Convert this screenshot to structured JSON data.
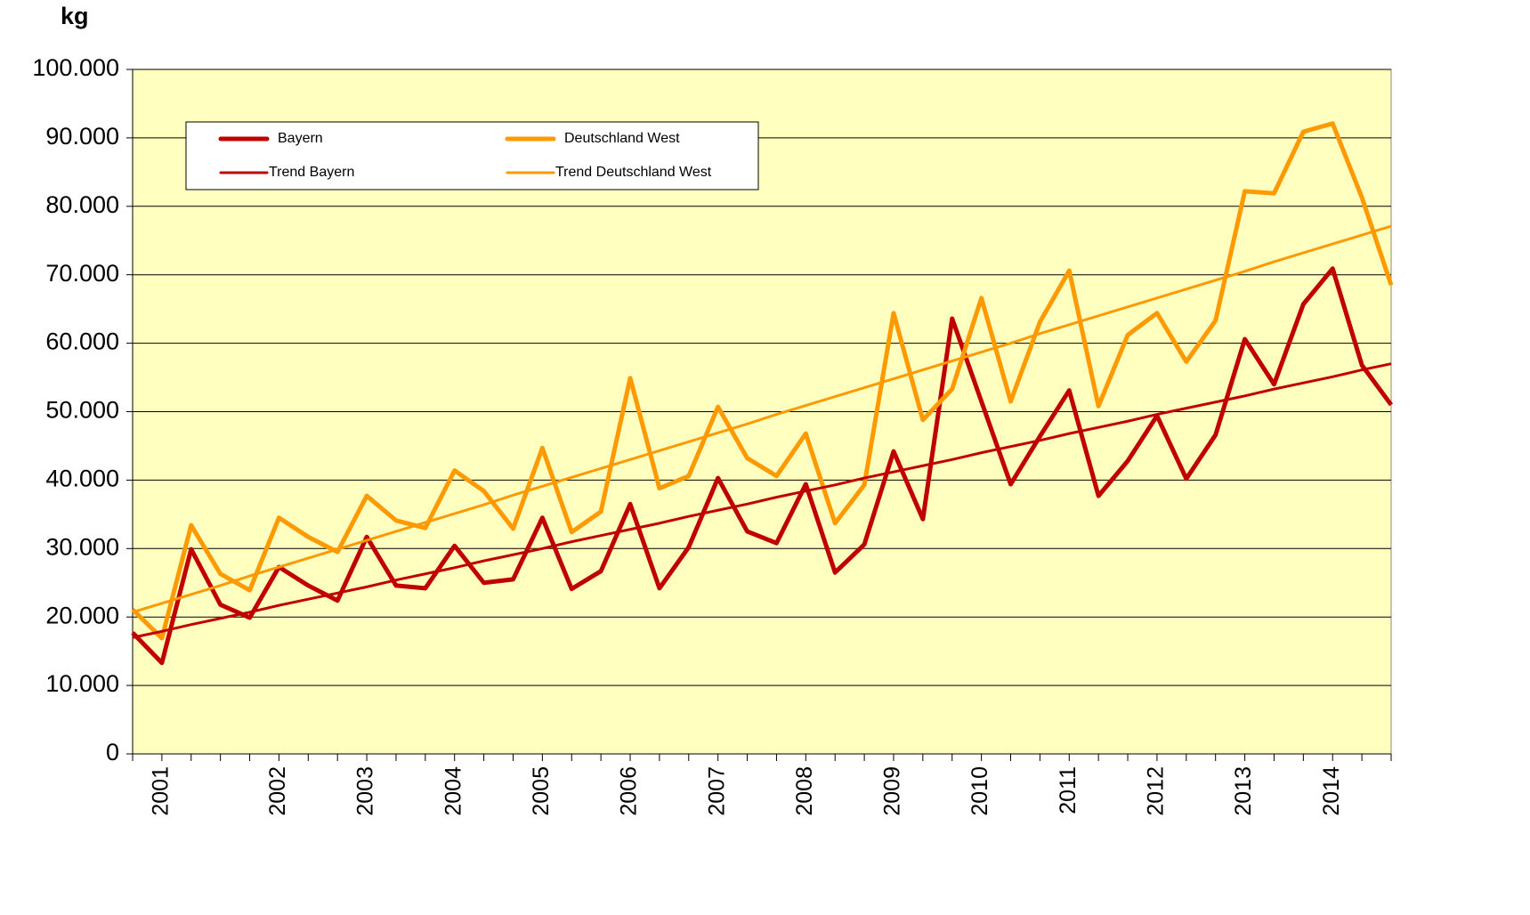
{
  "chart_data": {
    "type": "line",
    "y_label": "kg",
    "categories": [
      null,
      "2001",
      null,
      null,
      null,
      "2002",
      null,
      null,
      "2003",
      null,
      null,
      "2004",
      null,
      null,
      "2005",
      null,
      null,
      "2006",
      null,
      null,
      "2007",
      null,
      null,
      "2008",
      null,
      null,
      "2009",
      null,
      null,
      "2010",
      null,
      null,
      "2011",
      null,
      null,
      "2012",
      null,
      null,
      "2013",
      null,
      null,
      "2014",
      null,
      null
    ],
    "series": [
      {
        "name": "Bayern",
        "color": "#c00000",
        "width": 5,
        "values": [
          17700,
          13300,
          29900,
          21800,
          19900,
          27300,
          24600,
          22400,
          31700,
          24600,
          24200,
          30400,
          25000,
          25500,
          34500,
          24100,
          26700,
          36500,
          24200,
          30200,
          40300,
          32500,
          30800,
          39400,
          26500,
          30600,
          44200,
          34300,
          63600,
          51500,
          39400,
          46400,
          53100,
          37700,
          42800,
          49400,
          40200,
          46600,
          60600,
          54000,
          65700,
          70900,
          56800,
          51000
        ]
      },
      {
        "name": "Deutschland West",
        "color": "#ff9900",
        "width": 5,
        "values": [
          21100,
          16900,
          33400,
          26300,
          23900,
          34500,
          31700,
          29500,
          37700,
          34100,
          33000,
          41400,
          38400,
          32900,
          44700,
          32400,
          35400,
          54900,
          38800,
          40600,
          50700,
          43200,
          40600,
          46800,
          33700,
          39300,
          64400,
          48800,
          53300,
          66600,
          51500,
          63100,
          70600,
          50800,
          61200,
          64400,
          57300,
          63300,
          82200,
          81900,
          90900,
          92100,
          81300,
          68500
        ]
      },
      {
        "name": "Trend Bayern",
        "color": "#c00000",
        "width": 3,
        "values": [
          17000,
          17900,
          18900,
          19800,
          20700,
          21700,
          22600,
          23500,
          24400,
          25400,
          26300,
          27200,
          28200,
          29100,
          30000,
          31000,
          31900,
          32800,
          33700,
          34700,
          35600,
          36500,
          37500,
          38400,
          39300,
          40300,
          41200,
          42100,
          43000,
          44000,
          44900,
          45800,
          46800,
          47700,
          48600,
          49600,
          50500,
          51400,
          52300,
          53300,
          54200,
          55100,
          56100,
          57000
        ]
      },
      {
        "name": "Trend Deutschland West",
        "color": "#ff9900",
        "width": 3,
        "values": [
          20700,
          22000,
          23300,
          24600,
          26000,
          27300,
          28600,
          29900,
          31200,
          32500,
          33800,
          35100,
          36400,
          37800,
          39100,
          40400,
          41700,
          43000,
          44300,
          45600,
          46900,
          48200,
          49600,
          50900,
          52200,
          53500,
          54800,
          56100,
          57400,
          58700,
          60000,
          61400,
          62700,
          64000,
          65300,
          66600,
          67900,
          69200,
          70500,
          71900,
          73200,
          74500,
          75800,
          77100
        ]
      }
    ],
    "ylim": [
      0,
      100000
    ],
    "yticks": [
      0,
      {
        "value": 10000,
        "label": "10.000"
      },
      {
        "value": 20000,
        "label": "20.000"
      },
      {
        "value": 30000,
        "label": "30.000"
      },
      {
        "value": 40000,
        "label": "40.000"
      },
      {
        "value": 50000,
        "label": "50.000"
      },
      {
        "value": 60000,
        "label": "60.000"
      },
      {
        "value": 70000,
        "label": "70.000"
      },
      {
        "value": 80000,
        "label": "80.000"
      },
      {
        "value": 90000,
        "label": "90.000"
      },
      {
        "value": 100000,
        "label": "100.000"
      }
    ],
    "grid": true,
    "background": "#ffffbf"
  }
}
